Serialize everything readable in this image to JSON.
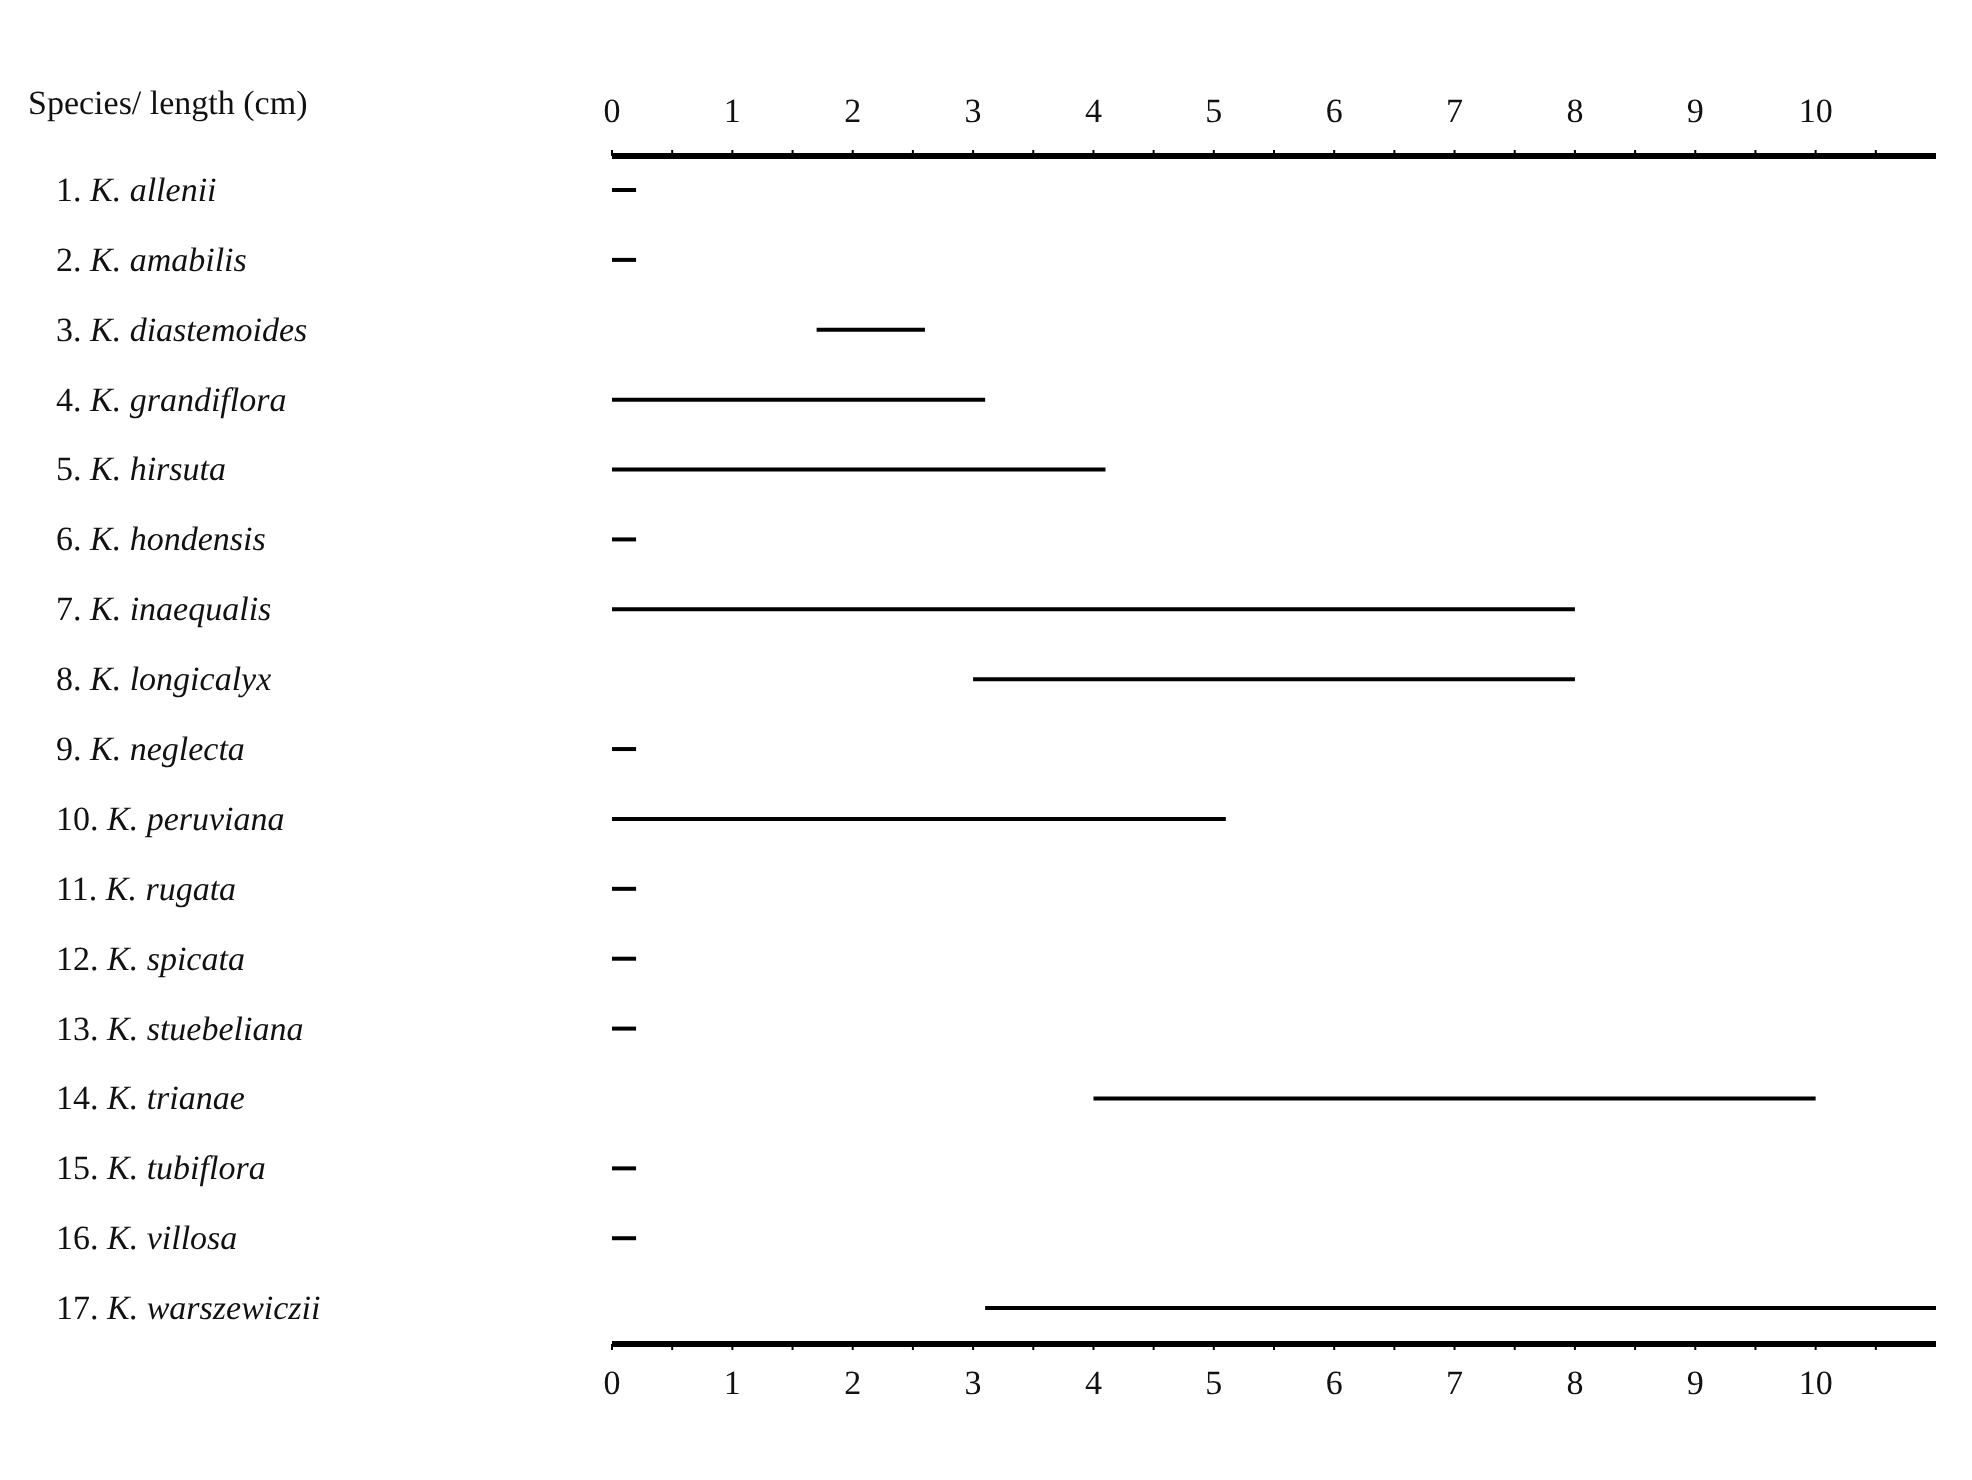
{
  "chart_data": {
    "type": "bar",
    "orientation": "horizontal",
    "ylabel": "Species/ length (cm)",
    "categories": [
      "1. K. allenii",
      "2. K. amabilis",
      "3. K. diastemoides",
      "4. K. grandiflora",
      "5. K. hirsuta",
      "6. K. hondensis",
      "7. K. inaequalis",
      "8. K. longicalyx",
      "9. K. neglecta",
      "10. K. peruviana",
      "11. K. rugata",
      "12. K. spicata",
      "13. K. stuebeliana",
      "14. K. trianae",
      "15. K. tubiflora",
      "16. K. villosa",
      "17. K. warszewiczii"
    ],
    "base": [
      0,
      0,
      1.7,
      0,
      0,
      0,
      0,
      3,
      0,
      0,
      0,
      0,
      0,
      4,
      0,
      0,
      3.1
    ],
    "values": [
      0.2,
      0.2,
      0.9,
      3.1,
      4.1,
      0.2,
      8,
      5,
      0.2,
      5.1,
      0.2,
      0.2,
      0.2,
      6,
      0.2,
      0.2,
      7.9
    ],
    "color": "#000000",
    "xlim": [
      0,
      11
    ],
    "xticks": [
      0,
      {
        "value": 0.5,
        "label": null
      },
      1,
      {
        "value": 1.5,
        "label": null
      },
      2,
      {
        "value": 2.5,
        "label": null
      },
      3,
      {
        "value": 3.5,
        "label": null
      },
      4,
      {
        "value": 4.5,
        "label": null
      },
      5,
      {
        "value": 5.5,
        "label": null
      },
      6,
      {
        "value": 6.5,
        "label": null
      },
      7,
      {
        "value": 7.5,
        "label": null
      },
      8,
      {
        "value": 8.5,
        "label": null
      },
      9,
      {
        "value": 9.5,
        "label": null
      },
      10,
      {
        "value": 10.5,
        "label": null
      }
    ],
    "x2lim": [
      0,
      11
    ],
    "x2ticks": [
      0,
      {
        "value": 0.5,
        "label": null
      },
      1,
      {
        "value": 1.5,
        "label": null
      },
      2,
      {
        "value": 2.5,
        "label": null
      },
      3,
      {
        "value": 3.5,
        "label": null
      },
      4,
      {
        "value": 4.5,
        "label": null
      },
      5,
      {
        "value": 5.5,
        "label": null
      },
      6,
      {
        "value": 6.5,
        "label": null
      },
      7,
      {
        "value": 7.5,
        "label": null
      },
      8,
      {
        "value": 8.5,
        "label": null
      },
      9,
      {
        "value": 9.5,
        "label": null
      },
      10,
      {
        "value": 10.5,
        "label": null
      }
    ],
    "grid": false
  }
}
